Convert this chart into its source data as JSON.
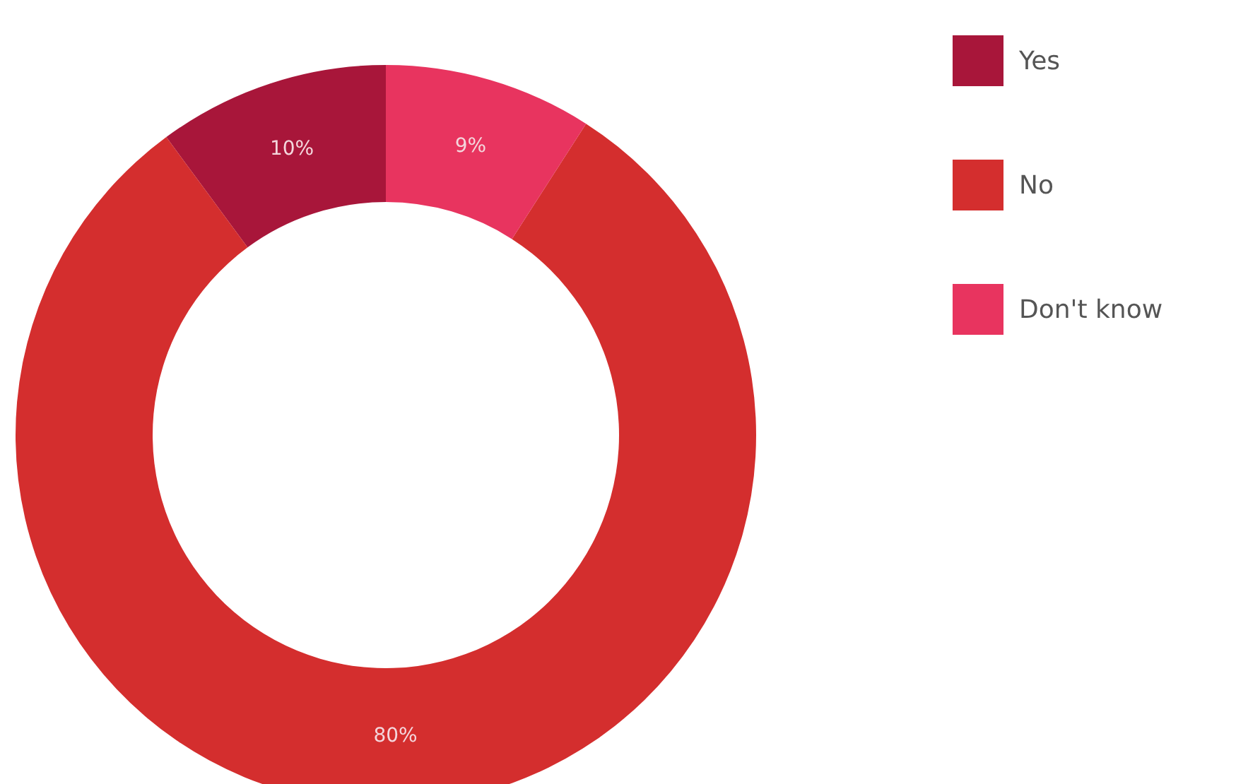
{
  "chart_data": {
    "type": "donut",
    "categories": [
      "Yes",
      "No",
      "Don't know"
    ],
    "values": [
      10,
      80,
      9
    ],
    "colors": [
      "#a8163a",
      "#d42e2e",
      "#e8345f"
    ],
    "value_labels": [
      "10%",
      "80%",
      "9%"
    ],
    "legend": "top right"
  }
}
